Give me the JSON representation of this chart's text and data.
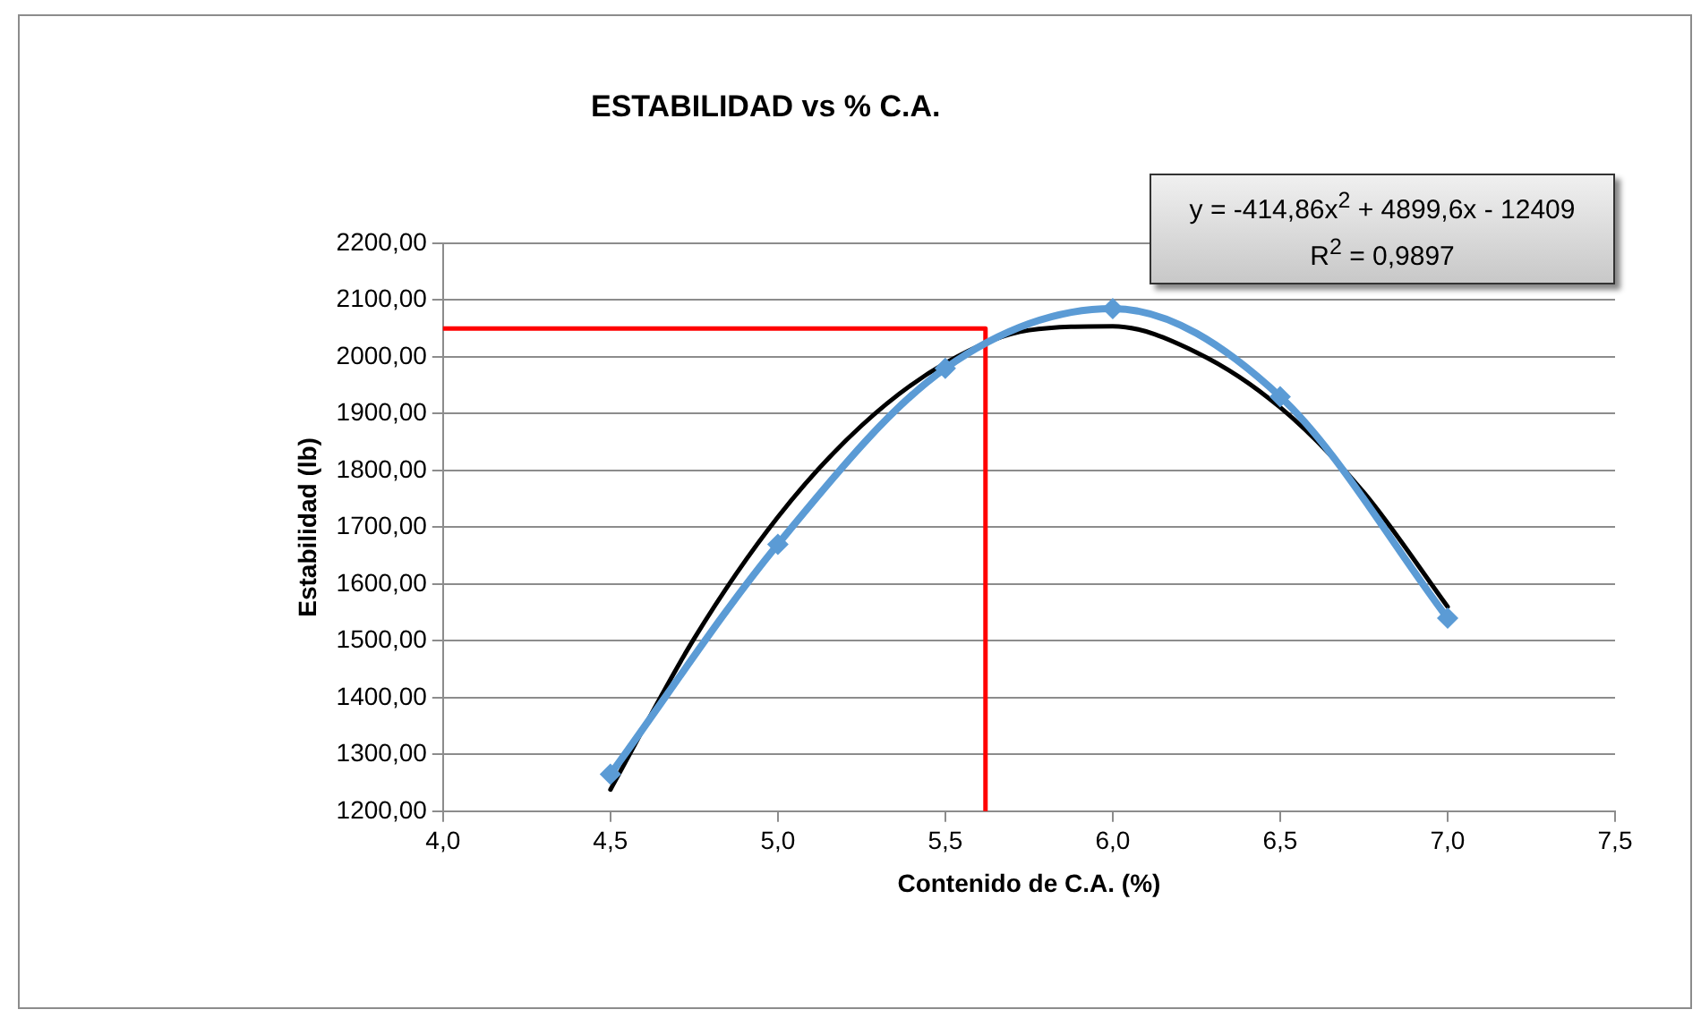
{
  "chart_data": {
    "type": "line",
    "title": "ESTABILIDAD vs % C.A.",
    "xlabel": "Contenido de C.A. (%)",
    "ylabel": "Estabilidad (lb)",
    "annotations": [
      "y = -414,86x$^{2}$ + 4899,6x - 12409",
      "R$^{2}$ = 0,9897"
    ],
    "xlim": [
      4,
      7.5
    ],
    "xticks": [
      {
        "value": 4,
        "label": "4,0"
      },
      {
        "value": 4.5,
        "label": "4,5"
      },
      {
        "value": 5,
        "label": "5,0"
      },
      {
        "value": 5.5,
        "label": "5,5"
      },
      {
        "value": 6,
        "label": "6,0"
      },
      {
        "value": 6.5,
        "label": "6,5"
      },
      {
        "value": 7,
        "label": "7,0"
      },
      {
        "value": 7.5,
        "label": "7,5"
      }
    ],
    "ylim": [
      1200,
      2200
    ],
    "yticks": [
      {
        "value": 1200,
        "label": "1200,00"
      },
      {
        "value": 1300,
        "label": "1300,00"
      },
      {
        "value": 1400,
        "label": "1400,00"
      },
      {
        "value": 1500,
        "label": "1500,00"
      },
      {
        "value": 1600,
        "label": "1600,00"
      },
      {
        "value": 1700,
        "label": "1700,00"
      },
      {
        "value": 1800,
        "label": "1800,00"
      },
      {
        "value": 1900,
        "label": "1900,00"
      },
      {
        "value": 2000,
        "label": "2000,00"
      },
      {
        "value": 2100,
        "label": "2100,00"
      },
      {
        "value": 2200,
        "label": "2200,00"
      }
    ],
    "grid": "y",
    "line_style": "solid",
    "series": [
      {
        "type": "line",
        "color": "#5b9bd5",
        "marker": "diamond",
        "x": [
          4.5,
          5,
          5.5,
          6,
          6.5,
          7
        ],
        "values": [
          1265,
          1670,
          1980,
          2085,
          1930,
          1540
        ]
      },
      {
        "type": "line",
        "color": "#000000",
        "marker": "none",
        "x": [
          4.5,
          4.75,
          5,
          5.25,
          5.5,
          5.75,
          6,
          6.25,
          6.5,
          6.75,
          7
        ],
        "values": [
          1238,
          1504,
          1718,
          1879,
          1989,
          2047,
          2054,
          2008,
          1911,
          1761,
          1560
        ]
      },
      {
        "type": "line",
        "color": "#ff0000",
        "marker": "none",
        "x": [
          4,
          5.62,
          5.62
        ],
        "values": [
          2050,
          2050,
          1200
        ]
      }
    ]
  }
}
